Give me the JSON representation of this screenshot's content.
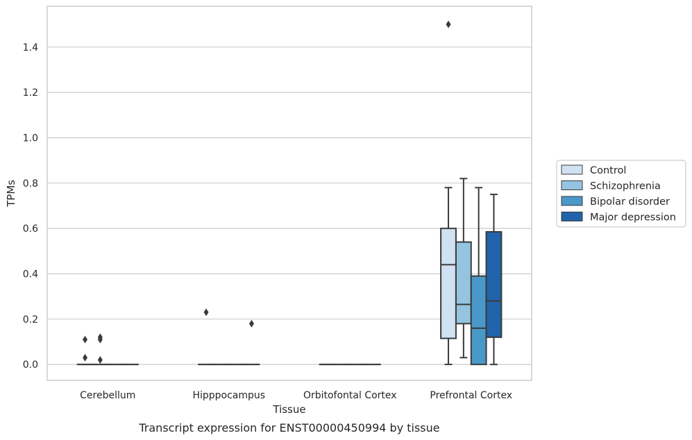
{
  "chart_data": {
    "type": "box",
    "title": "",
    "caption": "Transcript expression for ENST00000450994 by tissue",
    "xlabel": "Tissue",
    "ylabel": "TPMs",
    "ylim": [
      -0.07,
      1.58
    ],
    "yticks": [
      0.0,
      0.2,
      0.4,
      0.6,
      0.8,
      1.0,
      1.2,
      1.4
    ],
    "ytick_labels": [
      "0.0",
      "0.2",
      "0.4",
      "0.6",
      "0.8",
      "1.0",
      "1.2",
      "1.4"
    ],
    "grid": "horizontal",
    "legend_position": "right",
    "categories": [
      "Cerebellum",
      "Hipppocampus",
      "Orbitofontal Cortex",
      "Prefrontal Cortex"
    ],
    "series": [
      {
        "name": "Control",
        "color": "#d0e1f2",
        "boxes": [
          {
            "min": 0,
            "q1": 0,
            "median": 0,
            "q3": 0,
            "max": 0,
            "outliers": [
              0.11,
              0.03
            ]
          },
          {
            "min": 0,
            "q1": 0,
            "median": 0,
            "q3": 0,
            "max": 0,
            "outliers": [
              0.23
            ]
          },
          {
            "min": 0,
            "q1": 0,
            "median": 0,
            "q3": 0,
            "max": 0,
            "outliers": []
          },
          {
            "min": 0,
            "q1": 0.115,
            "median": 0.44,
            "q3": 0.6,
            "max": 0.78,
            "outliers": [
              1.5
            ]
          }
        ]
      },
      {
        "name": "Schizophrenia",
        "color": "#94c4df",
        "boxes": [
          {
            "min": 0,
            "q1": 0,
            "median": 0,
            "q3": 0,
            "max": 0,
            "outliers": [
              0.12,
              0.11,
              0.02
            ]
          },
          {
            "min": 0,
            "q1": 0,
            "median": 0,
            "q3": 0,
            "max": 0,
            "outliers": []
          },
          {
            "min": 0,
            "q1": 0,
            "median": 0,
            "q3": 0,
            "max": 0,
            "outliers": []
          },
          {
            "min": 0.03,
            "q1": 0.18,
            "median": 0.265,
            "q3": 0.54,
            "max": 0.82,
            "outliers": []
          }
        ]
      },
      {
        "name": "Bipolar disorder",
        "color": "#4a98c9",
        "boxes": [
          {
            "min": 0,
            "q1": 0,
            "median": 0,
            "q3": 0,
            "max": 0,
            "outliers": []
          },
          {
            "min": 0,
            "q1": 0,
            "median": 0,
            "q3": 0,
            "max": 0,
            "outliers": []
          },
          {
            "min": 0,
            "q1": 0,
            "median": 0,
            "q3": 0,
            "max": 0,
            "outliers": []
          },
          {
            "min": 0,
            "q1": 0,
            "median": 0.16,
            "q3": 0.39,
            "max": 0.78,
            "outliers": []
          }
        ]
      },
      {
        "name": "Major depression",
        "color": "#2164ab",
        "boxes": [
          {
            "min": 0,
            "q1": 0,
            "median": 0,
            "q3": 0,
            "max": 0,
            "outliers": []
          },
          {
            "min": 0,
            "q1": 0,
            "median": 0,
            "q3": 0,
            "max": 0,
            "outliers": [
              0.18
            ]
          },
          {
            "min": 0,
            "q1": 0,
            "median": 0,
            "q3": 0,
            "max": 0,
            "outliers": []
          },
          {
            "min": 0,
            "q1": 0.12,
            "median": 0.28,
            "q3": 0.585,
            "max": 0.75,
            "outliers": []
          }
        ]
      }
    ]
  }
}
